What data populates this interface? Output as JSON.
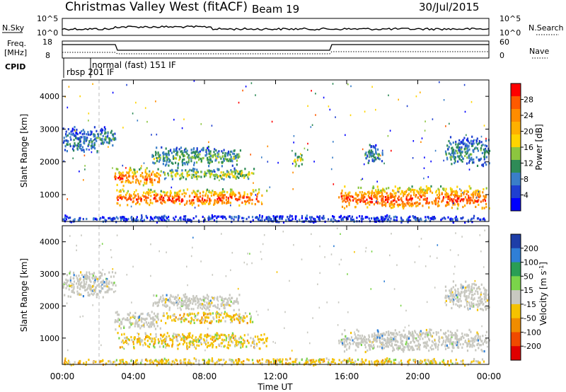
{
  "header": {
    "title": "Christmas Valley West (fitACF)",
    "beam": "Beam 19",
    "date": "30/Jul/2015"
  },
  "top_panels": {
    "nsky_label": "N.Sky",
    "nsky_ticks": [
      "10^5",
      "10^0"
    ],
    "nsearch_label": "N.Search",
    "nsearch_ticks": [
      "10^5",
      "10^0"
    ],
    "freq_label_line1": "Freq.",
    "freq_label_line2": "[MHz]",
    "freq_ticks": [
      "18",
      "8"
    ],
    "nave_label": "Nave",
    "nave_ticks": [
      "60",
      "0"
    ],
    "cpid_label": "CPID",
    "cpid_modes": [
      "rbsp 201 IF",
      "normal (fast) 151 IF"
    ]
  },
  "chart_data": [
    {
      "type": "heatmap",
      "name": "power-panel",
      "xlabel": "",
      "ylabel": "Slant Range [km]",
      "x_range_hours": [
        0,
        24
      ],
      "ylim": [
        180,
        4500
      ],
      "yticks": [
        "1000",
        "2000",
        "3000",
        "4000"
      ],
      "colorbar_label": "Power [dB]",
      "colorbar_ticks": [
        "28",
        "24",
        "20",
        "16",
        "12",
        "8",
        "4"
      ],
      "colorbar_colors": [
        "#ff0000",
        "#ff5a00",
        "#ff8c00",
        "#ffb000",
        "#ffd400",
        "#8cc63f",
        "#2e8b57",
        "#3a7ec8",
        "#1f3fd0",
        "#0000ff"
      ],
      "regions": [
        {
          "x": [
            0.0,
            2.0
          ],
          "y": [
            2300,
            3100
          ],
          "level": 0.25
        },
        {
          "x": [
            1.9,
            3.0
          ],
          "y": [
            2500,
            3100
          ],
          "level": 0.3
        },
        {
          "x": [
            2.9,
            5.5
          ],
          "y": [
            1300,
            1850
          ],
          "level": 0.75
        },
        {
          "x": [
            5.5,
            10.8
          ],
          "y": [
            1500,
            1850
          ],
          "level": 0.45
        },
        {
          "x": [
            5.0,
            10.0
          ],
          "y": [
            1900,
            2500
          ],
          "level": 0.35
        },
        {
          "x": [
            3.0,
            11.5
          ],
          "y": [
            700,
            1200
          ],
          "level": 0.8
        },
        {
          "x": [
            13.0,
            13.5
          ],
          "y": [
            1900,
            2300
          ],
          "level": 0.5
        },
        {
          "x": [
            15.5,
            24.0
          ],
          "y": [
            600,
            1300
          ],
          "level": 0.8
        },
        {
          "x": [
            17.0,
            18.0
          ],
          "y": [
            2000,
            2600
          ],
          "level": 0.3
        },
        {
          "x": [
            21.5,
            24.0
          ],
          "y": [
            1900,
            2800
          ],
          "level": 0.3
        },
        {
          "x": [
            0.0,
            24.0
          ],
          "y": [
            180,
            400
          ],
          "level": 0.15
        }
      ]
    },
    {
      "type": "heatmap",
      "name": "velocity-panel",
      "xlabel": "Time UT",
      "ylabel": "Slant Range [km]",
      "x_range_hours": [
        0,
        24
      ],
      "xticks": [
        "00:00",
        "04:00",
        "08:00",
        "12:00",
        "16:00",
        "20:00",
        "00:00"
      ],
      "ylim": [
        180,
        4500
      ],
      "yticks": [
        "1000",
        "2000",
        "3000",
        "4000"
      ],
      "colorbar_label": "Velocity [m s^-1]",
      "colorbar_ticks": [
        "200",
        "100",
        "50",
        "15",
        "-15",
        "-50",
        "-100",
        "-200"
      ],
      "colorbar_colors": [
        "#1e3ea8",
        "#2f7fd6",
        "#2a9e55",
        "#7bd44a",
        "#c8c8c0",
        "#f5c200",
        "#f08c00",
        "#f04a00",
        "#e00000"
      ],
      "regions": [
        {
          "x": [
            0.0,
            3.0
          ],
          "y": [
            2300,
            3100
          ],
          "cls": "gray"
        },
        {
          "x": [
            2.9,
            5.5
          ],
          "y": [
            1300,
            1850
          ],
          "cls": "gray"
        },
        {
          "x": [
            5.5,
            10.8
          ],
          "y": [
            1500,
            1850
          ],
          "cls": "orange"
        },
        {
          "x": [
            5.0,
            10.0
          ],
          "y": [
            1900,
            2400
          ],
          "cls": "gray"
        },
        {
          "x": [
            3.0,
            11.5
          ],
          "y": [
            700,
            1200
          ],
          "cls": "orange"
        },
        {
          "x": [
            15.5,
            24.0
          ],
          "y": [
            600,
            1300
          ],
          "cls": "gray"
        },
        {
          "x": [
            21.5,
            24.0
          ],
          "y": [
            1900,
            2800
          ],
          "cls": "gray"
        },
        {
          "x": [
            0.0,
            24.0
          ],
          "y": [
            180,
            400
          ],
          "cls": "orange"
        }
      ]
    }
  ]
}
